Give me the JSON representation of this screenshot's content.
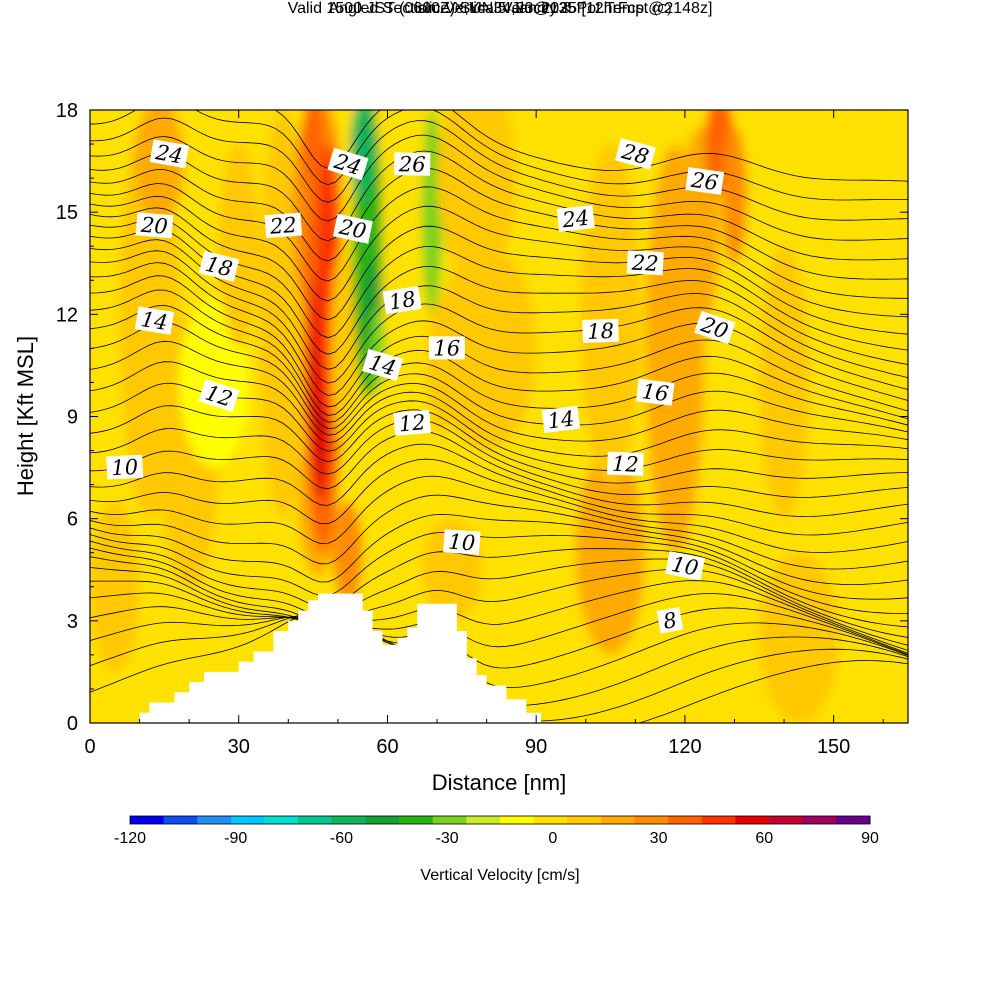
{
  "header": {
    "title": "Angled Section: Vertical Velocity & Pot.Temp.",
    "title_mark": "(C)",
    "valid_prefix": "Valid 1500 JST",
    "valid_zulu": "(0600Z)",
    "valid_date": "SUN 5 Jan 2025",
    "forecast": "[12hrFcst@2148z]",
    "slice": "slice X,Y= 34,23@135°"
  },
  "chart_data": {
    "type": "heatmap",
    "xlabel": "Distance [nm]",
    "ylabel": "Height [Kft MSL]",
    "xlim": [
      0,
      165
    ],
    "ylim": [
      0,
      18
    ],
    "x_ticks": [
      0,
      30,
      60,
      90,
      120,
      150
    ],
    "y_ticks": [
      0,
      3,
      6,
      9,
      12,
      15,
      18
    ],
    "grid": false,
    "colorbar": {
      "label": "Vertical Velocity [cm/s]",
      "min": -120,
      "max": 90,
      "step": 10,
      "tick_labels": [
        "-120",
        "-90",
        "-60",
        "-30",
        "0",
        "30",
        "60",
        "90"
      ],
      "colors": [
        "#0000f0",
        "#0f4cf0",
        "#1f8ff7",
        "#00c8ff",
        "#00e1d2",
        "#00c88c",
        "#10b45a",
        "#14a032",
        "#28b414",
        "#78d21e",
        "#c8eb28",
        "#ffff00",
        "#ffe100",
        "#ffc800",
        "#ffaa00",
        "#ff8c00",
        "#ff6400",
        "#ff3200",
        "#e60000",
        "#c80032",
        "#a00064",
        "#64008c"
      ]
    },
    "velocity_features": [
      {
        "x": 47,
        "z": 10,
        "w": 60,
        "note": "updraft plume"
      },
      {
        "x": 55,
        "z": 16,
        "w": -50,
        "note": "downdraft band"
      },
      {
        "x": 69,
        "z": 16,
        "w": -30,
        "note": "downdraft band"
      },
      {
        "x": 127,
        "z": 17,
        "w": 40,
        "note": "updraft"
      },
      {
        "x": 14,
        "z": 16.5,
        "w": 25,
        "note": "updraft"
      }
    ],
    "isentropes": [
      {
        "label": "8",
        "x": 117,
        "z": 3.0
      },
      {
        "label": "10",
        "x": 7,
        "z": 7.5
      },
      {
        "label": "10",
        "x": 75,
        "z": 5.3
      },
      {
        "label": "10",
        "x": 120,
        "z": 4.6
      },
      {
        "label": "12",
        "x": 26,
        "z": 9.6
      },
      {
        "label": "12",
        "x": 65,
        "z": 8.8
      },
      {
        "label": "12",
        "x": 108,
        "z": 7.6
      },
      {
        "label": "14",
        "x": 13,
        "z": 11.8
      },
      {
        "label": "14",
        "x": 59,
        "z": 10.5
      },
      {
        "label": "14",
        "x": 95,
        "z": 8.9
      },
      {
        "label": "16",
        "x": 72,
        "z": 11.0
      },
      {
        "label": "16",
        "x": 114,
        "z": 9.7
      },
      {
        "label": "18",
        "x": 26,
        "z": 13.4
      },
      {
        "label": "18",
        "x": 63,
        "z": 12.4
      },
      {
        "label": "18",
        "x": 103,
        "z": 11.5
      },
      {
        "label": "20",
        "x": 13,
        "z": 14.6
      },
      {
        "label": "20",
        "x": 53,
        "z": 14.5
      },
      {
        "label": "20",
        "x": 126,
        "z": 11.6
      },
      {
        "label": "22",
        "x": 39,
        "z": 14.6
      },
      {
        "label": "22",
        "x": 112,
        "z": 13.5
      },
      {
        "label": "24",
        "x": 16,
        "z": 16.7
      },
      {
        "label": "24",
        "x": 52,
        "z": 16.4
      },
      {
        "label": "24",
        "x": 98,
        "z": 14.8
      },
      {
        "label": "26",
        "x": 65,
        "z": 16.4
      },
      {
        "label": "26",
        "x": 124,
        "z": 15.9
      },
      {
        "label": "28",
        "x": 110,
        "z": 16.7
      }
    ],
    "terrain": [
      [
        10,
        0.3
      ],
      [
        12,
        0.6
      ],
      [
        17,
        0.9
      ],
      [
        20,
        1.2
      ],
      [
        23,
        1.5
      ],
      [
        30,
        1.8
      ],
      [
        33,
        2.1
      ],
      [
        37,
        2.7
      ],
      [
        40,
        3.0
      ],
      [
        42,
        3.3
      ],
      [
        44,
        3.6
      ],
      [
        46,
        3.8
      ],
      [
        53,
        3.8
      ],
      [
        55,
        3.3
      ],
      [
        57,
        2.7
      ],
      [
        59,
        2.3
      ],
      [
        62,
        2.5
      ],
      [
        64,
        2.8
      ],
      [
        66,
        3.5
      ],
      [
        72,
        3.5
      ],
      [
        74,
        2.7
      ],
      [
        76,
        1.9
      ],
      [
        78,
        1.4
      ],
      [
        80,
        1.1
      ],
      [
        84,
        0.7
      ],
      [
        88,
        0.3
      ],
      [
        91,
        0.3
      ]
    ]
  }
}
